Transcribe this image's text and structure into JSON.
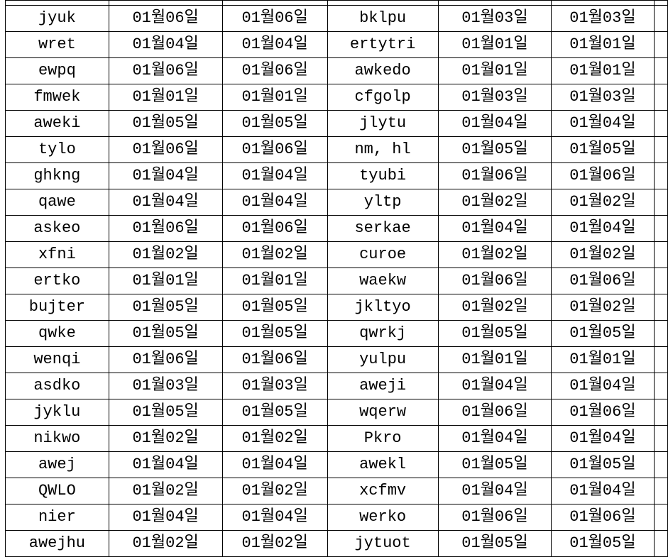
{
  "colors": {
    "background": "#ffffff",
    "border": "#000000",
    "text": "#000000"
  },
  "table": {
    "column_roles": [
      "name",
      "date",
      "date",
      "name",
      "date",
      "date"
    ],
    "rows": [
      [
        "jyuk",
        "01월06일",
        "01월06일",
        "bklpu",
        "01월03일",
        "01월03일"
      ],
      [
        "wret",
        "01월04일",
        "01월04일",
        "ertytri",
        "01월01일",
        "01월01일"
      ],
      [
        "ewpq",
        "01월06일",
        "01월06일",
        "awkedo",
        "01월01일",
        "01월01일"
      ],
      [
        "fmwek",
        "01월01일",
        "01월01일",
        "cfgolp",
        "01월03일",
        "01월03일"
      ],
      [
        "aweki",
        "01월05일",
        "01월05일",
        "jlytu",
        "01월04일",
        "01월04일"
      ],
      [
        "tylo",
        "01월06일",
        "01월06일",
        "nm, hl",
        "01월05일",
        "01월05일"
      ],
      [
        "ghkng",
        "01월04일",
        "01월04일",
        "tyubi",
        "01월06일",
        "01월06일"
      ],
      [
        "qawe",
        "01월04일",
        "01월04일",
        "yltp",
        "01월02일",
        "01월02일"
      ],
      [
        "askeo",
        "01월06일",
        "01월06일",
        "serkae",
        "01월04일",
        "01월04일"
      ],
      [
        "xfni",
        "01월02일",
        "01월02일",
        "curoe",
        "01월02일",
        "01월02일"
      ],
      [
        "ertko",
        "01월01일",
        "01월01일",
        "waekw",
        "01월06일",
        "01월06일"
      ],
      [
        "bujter",
        "01월05일",
        "01월05일",
        "jkltyo",
        "01월02일",
        "01월02일"
      ],
      [
        "qwke",
        "01월05일",
        "01월05일",
        "qwrkj",
        "01월05일",
        "01월05일"
      ],
      [
        "wenqi",
        "01월06일",
        "01월06일",
        "yulpu",
        "01월01일",
        "01월01일"
      ],
      [
        "asdko",
        "01월03일",
        "01월03일",
        "aweji",
        "01월04일",
        "01월04일"
      ],
      [
        "jyklu",
        "01월05일",
        "01월05일",
        "wqerw",
        "01월06일",
        "01월06일"
      ],
      [
        "nikwo",
        "01월02일",
        "01월02일",
        "Pkro",
        "01월04일",
        "01월04일"
      ],
      [
        "awej",
        "01월04일",
        "01월04일",
        "awekl",
        "01월05일",
        "01월05일"
      ],
      [
        "QWLO",
        "01월02일",
        "01월02일",
        "xcfmv",
        "01월04일",
        "01월04일"
      ],
      [
        "nier",
        "01월04일",
        "01월04일",
        "werko",
        "01월06일",
        "01월06일"
      ],
      [
        "awejhu",
        "01월02일",
        "01월02일",
        "jytuot",
        "01월05일",
        "01월05일"
      ]
    ]
  }
}
